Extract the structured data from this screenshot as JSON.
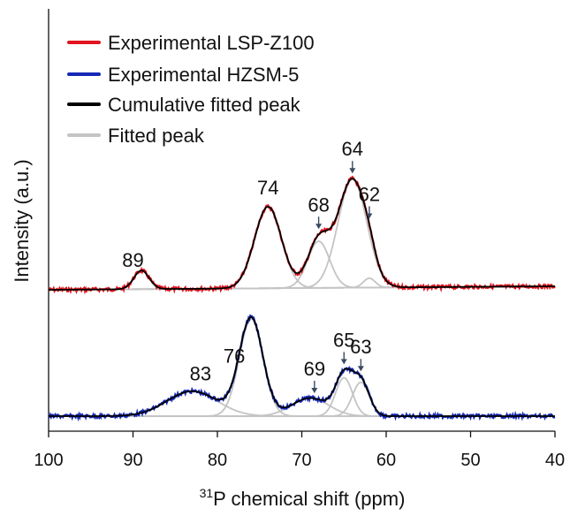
{
  "chart_data": {
    "type": "line",
    "xlabel_sup": "31",
    "xlabel": "P chemical shift (ppm)",
    "ylabel": "Intensity (a.u.)",
    "xlim": [
      100,
      40
    ],
    "xticks": [
      100,
      90,
      80,
      70,
      60,
      50,
      40
    ],
    "legend_position": "top-left",
    "legend": [
      {
        "label": "Experimental LSP-Z100",
        "color": "#e0141e"
      },
      {
        "label": "Experimental HZSM-5",
        "color": "#1428b4"
      },
      {
        "label": "Cumulative fitted peak",
        "color": "#000000"
      },
      {
        "label": "Fitted peak",
        "color": "#c4c4c4"
      }
    ],
    "series": [
      {
        "name": "LSP-Z100",
        "peaks": [
          {
            "center": 89,
            "height": 0.16,
            "width": 0.9
          },
          {
            "center": 74,
            "height": 0.7,
            "width": 1.6
          },
          {
            "center": 68,
            "height": 0.4,
            "width": 1.3
          },
          {
            "center": 64,
            "height": 0.93,
            "width": 1.7
          },
          {
            "center": 62,
            "height": 0.08,
            "width": 0.7
          }
        ],
        "labels": [
          {
            "text": "89",
            "ppm": 90,
            "arrow": false
          },
          {
            "text": "74",
            "ppm": 74,
            "arrow": false
          },
          {
            "text": "68",
            "ppm": 68,
            "arrow": true
          },
          {
            "text": "64",
            "ppm": 64,
            "arrow": true
          },
          {
            "text": "62",
            "ppm": 62,
            "arrow": true
          }
        ]
      },
      {
        "name": "HZSM-5",
        "peaks": [
          {
            "center": 83,
            "height": 0.22,
            "width": 3.0
          },
          {
            "center": 76,
            "height": 0.86,
            "width": 1.4
          },
          {
            "center": 69,
            "height": 0.16,
            "width": 2.2
          },
          {
            "center": 65,
            "height": 0.34,
            "width": 1.0
          },
          {
            "center": 63,
            "height": 0.3,
            "width": 1.0
          }
        ],
        "labels": [
          {
            "text": "83",
            "ppm": 82,
            "arrow": false
          },
          {
            "text": "76",
            "ppm": 78,
            "arrow": false
          },
          {
            "text": "69",
            "ppm": 68.5,
            "arrow": true
          },
          {
            "text": "65",
            "ppm": 65,
            "arrow": true
          },
          {
            "text": "63",
            "ppm": 63,
            "arrow": true
          }
        ]
      }
    ]
  }
}
